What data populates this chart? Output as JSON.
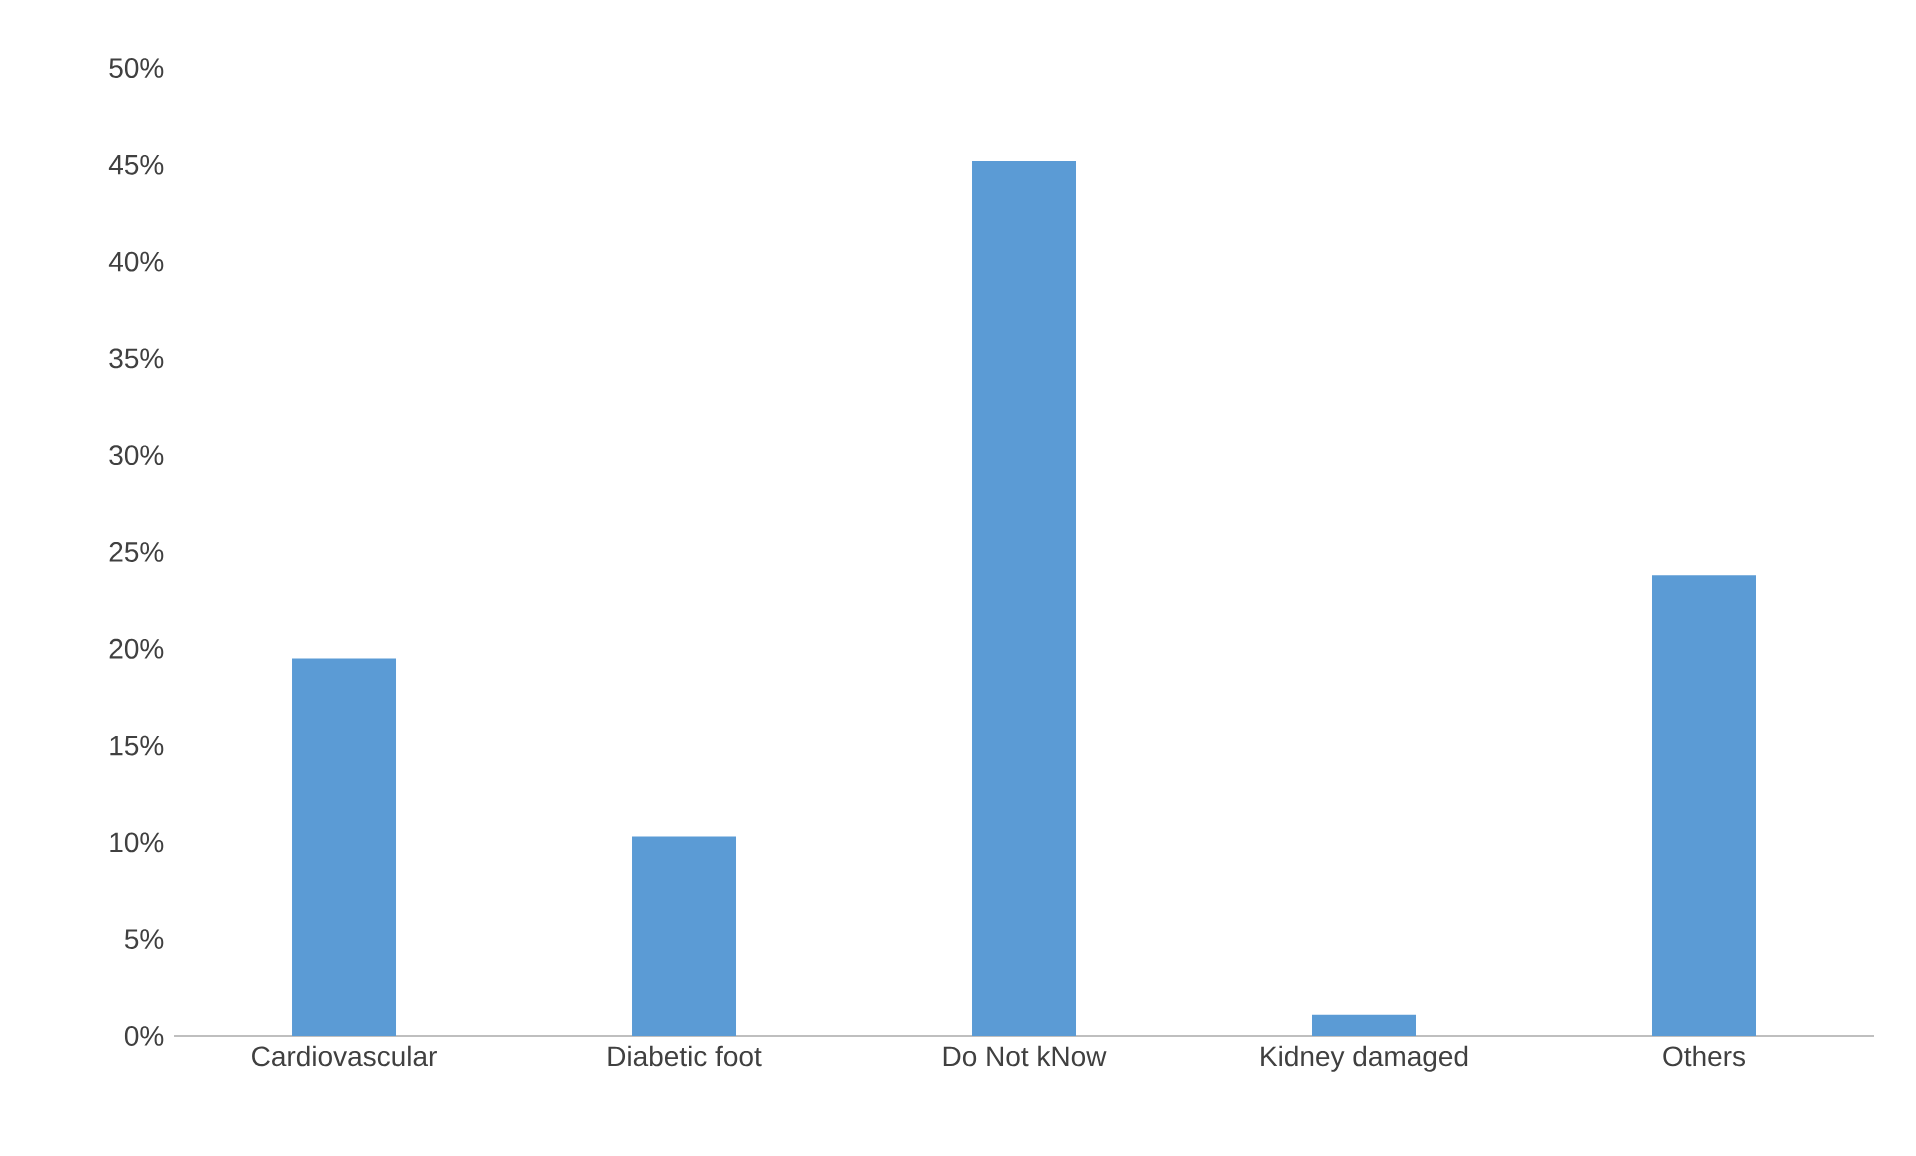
{
  "chart_data": {
    "type": "bar",
    "categories": [
      "Cardiovascular",
      "Diabetic foot",
      "Do Not kNow",
      "Kidney damaged",
      "Others"
    ],
    "values": [
      19.5,
      10.3,
      45.2,
      1.1,
      23.8
    ],
    "color": "#5b9bd5",
    "ylim": [
      0,
      50
    ],
    "yticks": [
      {
        "value": 0,
        "label": "0%"
      },
      {
        "value": 5,
        "label": "5%"
      },
      {
        "value": 10,
        "label": "10%"
      },
      {
        "value": 15,
        "label": "15%"
      },
      {
        "value": 20,
        "label": "20%"
      },
      {
        "value": 25,
        "label": "25%"
      },
      {
        "value": 30,
        "label": "30%"
      },
      {
        "value": 35,
        "label": "35%"
      },
      {
        "value": 40,
        "label": "40%"
      },
      {
        "value": 45,
        "label": "45%"
      },
      {
        "value": 50,
        "label": "50%"
      }
    ]
  }
}
